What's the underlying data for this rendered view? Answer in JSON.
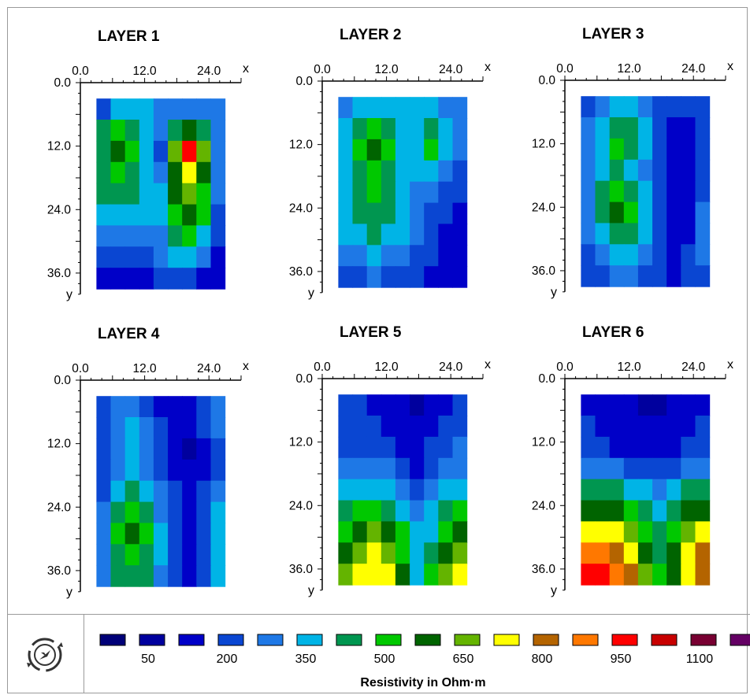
{
  "chart_data": {
    "type": "heatmap",
    "colorbar": {
      "title": "Resistivity in Ohm·m",
      "bins": [
        {
          "color": "#000078"
        },
        {
          "color": "#00009e"
        },
        {
          "color": "#0000c8"
        },
        {
          "color": "#0a46d2"
        },
        {
          "color": "#1e78e6"
        },
        {
          "color": "#00b4e6"
        },
        {
          "color": "#009650"
        },
        {
          "color": "#00c800"
        },
        {
          "color": "#006400"
        },
        {
          "color": "#64b400"
        },
        {
          "color": "#ffff00"
        },
        {
          "color": "#b46400"
        },
        {
          "color": "#ff7800"
        },
        {
          "color": "#ff0000"
        },
        {
          "color": "#c80000"
        },
        {
          "color": "#780032"
        },
        {
          "color": "#640064"
        }
      ],
      "tick_labels": [
        {
          "bin": 1,
          "label": "50"
        },
        {
          "bin": 3,
          "label": "200"
        },
        {
          "bin": 5,
          "label": "350"
        },
        {
          "bin": 7,
          "label": "500"
        },
        {
          "bin": 9,
          "label": "650"
        },
        {
          "bin": 11,
          "label": "800"
        },
        {
          "bin": 13,
          "label": "950"
        },
        {
          "bin": 15,
          "label": "1100"
        }
      ]
    },
    "panels": [
      {
        "title": "LAYER 1",
        "x_ticks": [
          "0.0",
          "12.0",
          "24.0"
        ],
        "y_ticks": [
          "0.0",
          "12.0",
          "24.0",
          "36.0"
        ],
        "xlabel": "x",
        "ylabel": "y",
        "x_range": [
          0,
          30
        ],
        "y_range": [
          0,
          40
        ],
        "data_extent": {
          "x": [
            3,
            27
          ],
          "y": [
            3,
            39
          ]
        },
        "grid": [
          [
            3,
            5,
            5,
            5,
            4,
            4,
            4,
            4,
            4
          ],
          [
            6,
            7,
            6,
            5,
            4,
            6,
            8,
            6,
            4
          ],
          [
            6,
            8,
            7,
            5,
            3,
            9,
            13,
            9,
            4
          ],
          [
            6,
            7,
            6,
            5,
            4,
            8,
            10,
            8,
            4
          ],
          [
            6,
            6,
            6,
            5,
            5,
            8,
            9,
            7,
            4
          ],
          [
            5,
            5,
            5,
            5,
            5,
            7,
            8,
            7,
            3
          ],
          [
            4,
            4,
            4,
            4,
            4,
            6,
            7,
            5,
            3
          ],
          [
            3,
            3,
            3,
            3,
            4,
            5,
            5,
            4,
            2
          ],
          [
            2,
            2,
            2,
            2,
            3,
            3,
            3,
            2,
            2
          ]
        ]
      },
      {
        "title": "LAYER 2",
        "x_ticks": [
          "0.0",
          "12.0",
          "24.0"
        ],
        "y_ticks": [
          "0.0",
          "12.0",
          "24.0",
          "36.0"
        ],
        "xlabel": "x",
        "ylabel": "y",
        "x_range": [
          0,
          30
        ],
        "y_range": [
          0,
          40
        ],
        "data_extent": {
          "x": [
            3,
            27
          ],
          "y": [
            3,
            39
          ]
        },
        "grid": [
          [
            4,
            5,
            5,
            5,
            5,
            5,
            5,
            4,
            4
          ],
          [
            5,
            6,
            7,
            6,
            5,
            5,
            6,
            5,
            4
          ],
          [
            5,
            7,
            8,
            7,
            5,
            5,
            7,
            5,
            4
          ],
          [
            5,
            6,
            7,
            6,
            5,
            5,
            5,
            4,
            3
          ],
          [
            5,
            6,
            7,
            6,
            5,
            4,
            4,
            3,
            3
          ],
          [
            5,
            6,
            6,
            6,
            5,
            4,
            3,
            3,
            2
          ],
          [
            5,
            5,
            6,
            5,
            5,
            4,
            3,
            2,
            2
          ],
          [
            4,
            4,
            5,
            4,
            4,
            3,
            3,
            2,
            2
          ],
          [
            3,
            3,
            4,
            3,
            3,
            3,
            2,
            2,
            2
          ]
        ]
      },
      {
        "title": "LAYER 3",
        "x_ticks": [
          "0.0",
          "12.0",
          "24.0"
        ],
        "y_ticks": [
          "0.0",
          "12.0",
          "24.0",
          "36.0"
        ],
        "xlabel": "x",
        "ylabel": "y",
        "x_range": [
          0,
          30
        ],
        "y_range": [
          0,
          40
        ],
        "data_extent": {
          "x": [
            3,
            27
          ],
          "y": [
            3,
            39
          ]
        },
        "grid": [
          [
            3,
            4,
            5,
            5,
            4,
            3,
            3,
            3,
            3
          ],
          [
            4,
            5,
            6,
            6,
            5,
            3,
            2,
            2,
            3
          ],
          [
            4,
            5,
            7,
            6,
            5,
            3,
            2,
            2,
            3
          ],
          [
            4,
            5,
            6,
            5,
            4,
            3,
            2,
            2,
            3
          ],
          [
            4,
            6,
            7,
            6,
            5,
            3,
            2,
            2,
            3
          ],
          [
            4,
            6,
            8,
            7,
            5,
            3,
            2,
            2,
            4
          ],
          [
            4,
            5,
            6,
            6,
            5,
            3,
            2,
            2,
            4
          ],
          [
            3,
            4,
            5,
            5,
            4,
            3,
            2,
            3,
            4
          ],
          [
            3,
            3,
            4,
            4,
            3,
            3,
            2,
            3,
            3
          ]
        ]
      },
      {
        "title": "LAYER 4",
        "x_ticks": [
          "0.0",
          "12.0",
          "24.0"
        ],
        "y_ticks": [
          "0.0",
          "12.0",
          "24.0",
          "36.0"
        ],
        "xlabel": "x",
        "ylabel": "y",
        "x_range": [
          0,
          30
        ],
        "y_range": [
          0,
          40
        ],
        "data_extent": {
          "x": [
            3,
            27
          ],
          "y": [
            3,
            39
          ]
        },
        "grid": [
          [
            3,
            4,
            4,
            3,
            2,
            2,
            2,
            3,
            4
          ],
          [
            3,
            4,
            5,
            4,
            3,
            2,
            2,
            3,
            4
          ],
          [
            3,
            4,
            5,
            4,
            3,
            2,
            1,
            2,
            3
          ],
          [
            3,
            4,
            5,
            4,
            3,
            2,
            2,
            2,
            3
          ],
          [
            3,
            5,
            6,
            5,
            4,
            3,
            2,
            3,
            4
          ],
          [
            4,
            6,
            7,
            6,
            4,
            3,
            2,
            3,
            5
          ],
          [
            4,
            7,
            8,
            7,
            5,
            3,
            2,
            3,
            5
          ],
          [
            4,
            6,
            7,
            6,
            5,
            3,
            2,
            3,
            5
          ],
          [
            4,
            6,
            6,
            6,
            4,
            3,
            2,
            3,
            5
          ]
        ]
      },
      {
        "title": "LAYER 5",
        "x_ticks": [
          "0.0",
          "12.0",
          "24.0"
        ],
        "y_ticks": [
          "0.0",
          "12.0",
          "24.0",
          "36.0"
        ],
        "xlabel": "x",
        "ylabel": "y",
        "x_range": [
          0,
          30
        ],
        "y_range": [
          0,
          40
        ],
        "data_extent": {
          "x": [
            3,
            27
          ],
          "y": [
            3,
            39
          ]
        },
        "grid": [
          [
            3,
            3,
            2,
            2,
            2,
            1,
            2,
            2,
            3
          ],
          [
            3,
            3,
            3,
            2,
            2,
            2,
            2,
            3,
            3
          ],
          [
            3,
            3,
            3,
            3,
            2,
            2,
            3,
            3,
            4
          ],
          [
            4,
            4,
            4,
            4,
            3,
            2,
            3,
            4,
            4
          ],
          [
            5,
            5,
            5,
            5,
            4,
            3,
            4,
            5,
            5
          ],
          [
            6,
            7,
            7,
            6,
            5,
            4,
            5,
            6,
            7
          ],
          [
            7,
            8,
            9,
            8,
            7,
            5,
            5,
            7,
            8
          ],
          [
            8,
            9,
            10,
            9,
            7,
            5,
            6,
            8,
            9
          ],
          [
            9,
            10,
            10,
            10,
            8,
            5,
            7,
            9,
            10
          ]
        ]
      },
      {
        "title": "LAYER 6",
        "x_ticks": [
          "0.0",
          "12.0",
          "24.0"
        ],
        "y_ticks": [
          "0.0",
          "12.0",
          "24.0",
          "36.0"
        ],
        "xlabel": "x",
        "ylabel": "y",
        "x_range": [
          0,
          30
        ],
        "y_range": [
          0,
          40
        ],
        "data_extent": {
          "x": [
            3,
            27
          ],
          "y": [
            3,
            39
          ]
        },
        "grid": [
          [
            2,
            2,
            2,
            2,
            1,
            1,
            2,
            2,
            2
          ],
          [
            3,
            2,
            2,
            2,
            2,
            2,
            2,
            2,
            3
          ],
          [
            3,
            3,
            2,
            2,
            2,
            2,
            2,
            3,
            3
          ],
          [
            4,
            4,
            4,
            3,
            3,
            3,
            3,
            4,
            4
          ],
          [
            6,
            6,
            6,
            5,
            5,
            4,
            5,
            6,
            6
          ],
          [
            8,
            8,
            8,
            7,
            6,
            5,
            6,
            8,
            8
          ],
          [
            10,
            10,
            10,
            9,
            7,
            6,
            7,
            9,
            10
          ],
          [
            12,
            12,
            11,
            10,
            8,
            6,
            8,
            10,
            11
          ],
          [
            13,
            13,
            12,
            11,
            9,
            7,
            8,
            10,
            11
          ]
        ]
      }
    ]
  },
  "toolbar": {
    "navigator_icon": "compass-rotate-icon"
  }
}
